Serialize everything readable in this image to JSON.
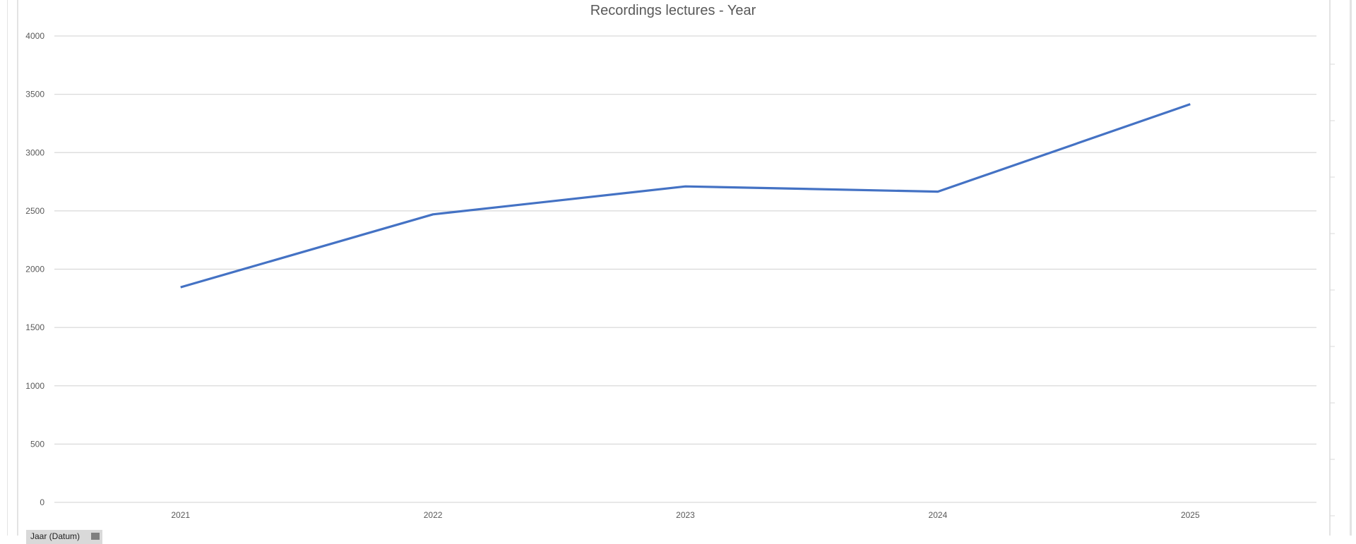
{
  "chart_data": {
    "type": "line",
    "title": "Recordings lectures - Year",
    "categories": [
      "2021",
      "2022",
      "2023",
      "2024",
      "2025"
    ],
    "series": [
      {
        "values": [
          1845,
          2470,
          2710,
          2665,
          3415
        ],
        "color": "#4472c4"
      }
    ],
    "yticks": [
      "0",
      "500",
      "1000",
      "1500",
      "2000",
      "2500",
      "3000",
      "3500",
      "4000"
    ],
    "ylim": [
      0,
      4000
    ],
    "grid": true,
    "legend": "none"
  },
  "field_button": {
    "label": "Jaar (Datum)"
  }
}
